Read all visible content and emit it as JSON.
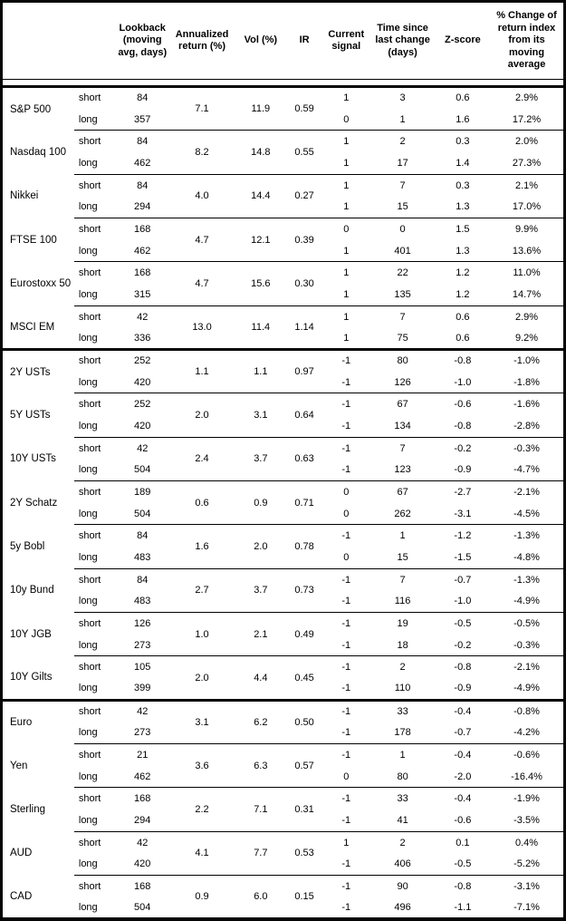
{
  "header": {
    "instrument": "",
    "leg": "",
    "lookback": "Lookback\n(moving\navg, days)",
    "annualized": "Annualized\nreturn (%)",
    "vol": "Vol (%)",
    "ir": "IR",
    "signal": "Current\nsignal",
    "time_since": "Time since\nlast change\n(days)",
    "zscore": "Z-score",
    "pct_change": "% Change of\nreturn index\nfrom its\nmoving\naverage"
  },
  "leg_labels": {
    "short": "short",
    "long": "long"
  },
  "colors": {
    "text": "#000000",
    "border": "#050505",
    "background": "#ffffff"
  },
  "sections": [
    {
      "instruments": [
        {
          "name": "S&P 500",
          "annualized": "7.1",
          "vol": "11.9",
          "ir": "0.59",
          "short": {
            "lookback": "84",
            "signal": "1",
            "time": "3",
            "zscore": "0.6",
            "pct": "2.9%"
          },
          "long": {
            "lookback": "357",
            "signal": "0",
            "time": "1",
            "zscore": "1.6",
            "pct": "17.2%"
          }
        },
        {
          "name": "Nasdaq 100",
          "annualized": "8.2",
          "vol": "14.8",
          "ir": "0.55",
          "short": {
            "lookback": "84",
            "signal": "1",
            "time": "2",
            "zscore": "0.3",
            "pct": "2.0%"
          },
          "long": {
            "lookback": "462",
            "signal": "1",
            "time": "17",
            "zscore": "1.4",
            "pct": "27.3%"
          }
        },
        {
          "name": "Nikkei",
          "annualized": "4.0",
          "vol": "14.4",
          "ir": "0.27",
          "short": {
            "lookback": "84",
            "signal": "1",
            "time": "7",
            "zscore": "0.3",
            "pct": "2.1%"
          },
          "long": {
            "lookback": "294",
            "signal": "1",
            "time": "15",
            "zscore": "1.3",
            "pct": "17.0%"
          }
        },
        {
          "name": "FTSE 100",
          "annualized": "4.7",
          "vol": "12.1",
          "ir": "0.39",
          "short": {
            "lookback": "168",
            "signal": "0",
            "time": "0",
            "zscore": "1.5",
            "pct": "9.9%"
          },
          "long": {
            "lookback": "462",
            "signal": "1",
            "time": "401",
            "zscore": "1.3",
            "pct": "13.6%"
          }
        },
        {
          "name": "Eurostoxx 50",
          "annualized": "4.7",
          "vol": "15.6",
          "ir": "0.30",
          "short": {
            "lookback": "168",
            "signal": "1",
            "time": "22",
            "zscore": "1.2",
            "pct": "11.0%"
          },
          "long": {
            "lookback": "315",
            "signal": "1",
            "time": "135",
            "zscore": "1.2",
            "pct": "14.7%"
          }
        },
        {
          "name": "MSCI EM",
          "annualized": "13.0",
          "vol": "11.4",
          "ir": "1.14",
          "short": {
            "lookback": "42",
            "signal": "1",
            "time": "7",
            "zscore": "0.6",
            "pct": "2.9%"
          },
          "long": {
            "lookback": "336",
            "signal": "1",
            "time": "75",
            "zscore": "0.6",
            "pct": "9.2%"
          }
        }
      ]
    },
    {
      "instruments": [
        {
          "name": "2Y USTs",
          "annualized": "1.1",
          "vol": "1.1",
          "ir": "0.97",
          "short": {
            "lookback": "252",
            "signal": "-1",
            "time": "80",
            "zscore": "-0.8",
            "pct": "-1.0%"
          },
          "long": {
            "lookback": "420",
            "signal": "-1",
            "time": "126",
            "zscore": "-1.0",
            "pct": "-1.8%"
          }
        },
        {
          "name": "5Y USTs",
          "annualized": "2.0",
          "vol": "3.1",
          "ir": "0.64",
          "short": {
            "lookback": "252",
            "signal": "-1",
            "time": "67",
            "zscore": "-0.6",
            "pct": "-1.6%"
          },
          "long": {
            "lookback": "420",
            "signal": "-1",
            "time": "134",
            "zscore": "-0.8",
            "pct": "-2.8%"
          }
        },
        {
          "name": "10Y USTs",
          "annualized": "2.4",
          "vol": "3.7",
          "ir": "0.63",
          "short": {
            "lookback": "42",
            "signal": "-1",
            "time": "7",
            "zscore": "-0.2",
            "pct": "-0.3%"
          },
          "long": {
            "lookback": "504",
            "signal": "-1",
            "time": "123",
            "zscore": "-0.9",
            "pct": "-4.7%"
          }
        },
        {
          "name": "2Y Schatz",
          "annualized": "0.6",
          "vol": "0.9",
          "ir": "0.71",
          "short": {
            "lookback": "189",
            "signal": "0",
            "time": "67",
            "zscore": "-2.7",
            "pct": "-2.1%"
          },
          "long": {
            "lookback": "504",
            "signal": "0",
            "time": "262",
            "zscore": "-3.1",
            "pct": "-4.5%"
          }
        },
        {
          "name": "5y Bobl",
          "annualized": "1.6",
          "vol": "2.0",
          "ir": "0.78",
          "short": {
            "lookback": "84",
            "signal": "-1",
            "time": "1",
            "zscore": "-1.2",
            "pct": "-1.3%"
          },
          "long": {
            "lookback": "483",
            "signal": "0",
            "time": "15",
            "zscore": "-1.5",
            "pct": "-4.8%"
          }
        },
        {
          "name": "10y Bund",
          "annualized": "2.7",
          "vol": "3.7",
          "ir": "0.73",
          "short": {
            "lookback": "84",
            "signal": "-1",
            "time": "7",
            "zscore": "-0.7",
            "pct": "-1.3%"
          },
          "long": {
            "lookback": "483",
            "signal": "-1",
            "time": "116",
            "zscore": "-1.0",
            "pct": "-4.9%"
          }
        },
        {
          "name": "10Y JGB",
          "annualized": "1.0",
          "vol": "2.1",
          "ir": "0.49",
          "short": {
            "lookback": "126",
            "signal": "-1",
            "time": "19",
            "zscore": "-0.5",
            "pct": "-0.5%"
          },
          "long": {
            "lookback": "273",
            "signal": "-1",
            "time": "18",
            "zscore": "-0.2",
            "pct": "-0.3%"
          }
        },
        {
          "name": "10Y Gilts",
          "annualized": "2.0",
          "vol": "4.4",
          "ir": "0.45",
          "short": {
            "lookback": "105",
            "signal": "-1",
            "time": "2",
            "zscore": "-0.8",
            "pct": "-2.1%"
          },
          "long": {
            "lookback": "399",
            "signal": "-1",
            "time": "110",
            "zscore": "-0.9",
            "pct": "-4.9%"
          }
        }
      ]
    },
    {
      "instruments": [
        {
          "name": "Euro",
          "annualized": "3.1",
          "vol": "6.2",
          "ir": "0.50",
          "short": {
            "lookback": "42",
            "signal": "-1",
            "time": "33",
            "zscore": "-0.4",
            "pct": "-0.8%"
          },
          "long": {
            "lookback": "273",
            "signal": "-1",
            "time": "178",
            "zscore": "-0.7",
            "pct": "-4.2%"
          }
        },
        {
          "name": "Yen",
          "annualized": "3.6",
          "vol": "6.3",
          "ir": "0.57",
          "short": {
            "lookback": "21",
            "signal": "-1",
            "time": "1",
            "zscore": "-0.4",
            "pct": "-0.6%"
          },
          "long": {
            "lookback": "462",
            "signal": "0",
            "time": "80",
            "zscore": "-2.0",
            "pct": "-16.4%"
          }
        },
        {
          "name": "Sterling",
          "annualized": "2.2",
          "vol": "7.1",
          "ir": "0.31",
          "short": {
            "lookback": "168",
            "signal": "-1",
            "time": "33",
            "zscore": "-0.4",
            "pct": "-1.9%"
          },
          "long": {
            "lookback": "294",
            "signal": "-1",
            "time": "41",
            "zscore": "-0.6",
            "pct": "-3.5%"
          }
        },
        {
          "name": "AUD",
          "annualized": "4.1",
          "vol": "7.7",
          "ir": "0.53",
          "short": {
            "lookback": "42",
            "signal": "1",
            "time": "2",
            "zscore": "0.1",
            "pct": "0.4%"
          },
          "long": {
            "lookback": "420",
            "signal": "-1",
            "time": "406",
            "zscore": "-0.5",
            "pct": "-5.2%"
          }
        },
        {
          "name": "CAD",
          "annualized": "0.9",
          "vol": "6.0",
          "ir": "0.15",
          "short": {
            "lookback": "168",
            "signal": "-1",
            "time": "90",
            "zscore": "-0.8",
            "pct": "-3.1%"
          },
          "long": {
            "lookback": "504",
            "signal": "-1",
            "time": "496",
            "zscore": "-1.1",
            "pct": "-7.1%"
          }
        }
      ]
    }
  ]
}
